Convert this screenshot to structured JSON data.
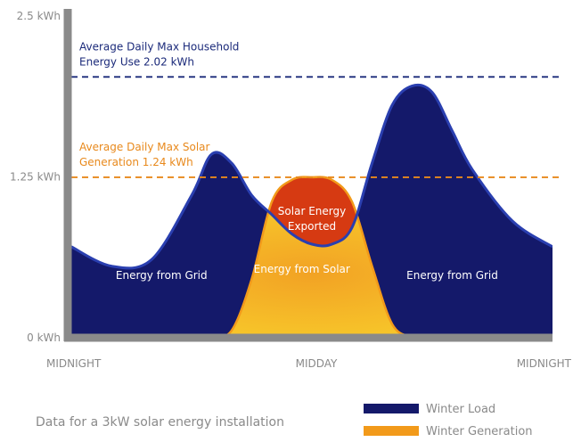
{
  "chart_data": {
    "type": "area",
    "y_ticks": [
      "2.5 kWh",
      "1.25 kWh",
      "0 kWh"
    ],
    "x_ticks": [
      "MIDNIGHT",
      "MIDDAY",
      "MIDNIGHT"
    ],
    "ylim": [
      0,
      2.5
    ],
    "x": [
      0,
      2,
      4,
      6,
      7,
      8,
      9,
      10,
      11,
      12,
      13,
      14,
      15,
      16,
      17,
      18,
      19,
      20,
      22,
      24
    ],
    "series": [
      {
        "name": "Winter Load",
        "color": "#14196a",
        "values": [
          0.7,
          0.55,
          0.6,
          1.1,
          1.42,
          1.35,
          1.1,
          0.95,
          0.8,
          0.72,
          0.72,
          0.85,
          1.35,
          1.8,
          1.95,
          1.9,
          1.6,
          1.3,
          0.9,
          0.7
        ]
      },
      {
        "name": "Winter Generation",
        "color": "#f29a1a",
        "values": [
          0,
          0,
          0,
          0,
          0,
          0.05,
          0.45,
          1.05,
          1.22,
          1.24,
          1.22,
          1.05,
          0.55,
          0.1,
          0,
          0,
          0,
          0,
          0,
          0
        ]
      }
    ],
    "reference_lines": [
      {
        "value": 2.02,
        "color": "#1b2a7a",
        "label": [
          "Average Daily Max Household",
          "Energy Use 2.02 kWh"
        ]
      },
      {
        "value": 1.24,
        "color": "#e8891c",
        "label": [
          "Average Daily Max Solar",
          "Generation 1.24 kWh"
        ]
      }
    ],
    "annotations": [
      {
        "text": [
          "Energy from Grid"
        ],
        "x": 4.5,
        "y": 0.45
      },
      {
        "text": [
          "Energy from Solar"
        ],
        "x": 11.5,
        "y": 0.5
      },
      {
        "text": [
          "Solar Energy",
          "Exported"
        ],
        "x": 12,
        "y": 0.95
      },
      {
        "text": [
          "Energy from Grid"
        ],
        "x": 19,
        "y": 0.45
      }
    ],
    "legend": {
      "placement": "bottom-right",
      "items": [
        {
          "label": "Winter Load",
          "color": "#14196a"
        },
        {
          "label": "Winter Generation",
          "color": "#f29a1a"
        }
      ]
    },
    "grid": false
  },
  "caption": "Data for a 3kW solar energy installation"
}
